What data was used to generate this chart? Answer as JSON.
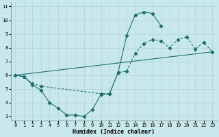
{
  "background_color": "#c8e8ec",
  "line_color": "#1e6e6e",
  "grid_color": "#b0d4d8",
  "xlim": [
    -0.5,
    23.5
  ],
  "ylim": [
    2.7,
    11.3
  ],
  "xticks": [
    0,
    1,
    2,
    3,
    4,
    5,
    6,
    7,
    8,
    9,
    10,
    11,
    12,
    13,
    14,
    15,
    16,
    17,
    18,
    19,
    20,
    21,
    22,
    23
  ],
  "yticks": [
    3,
    4,
    5,
    6,
    7,
    8,
    9,
    10,
    11
  ],
  "xlabel": "Humidex (Indice chaleur)",
  "curve1_x": [
    0,
    1,
    2,
    3,
    4,
    5,
    6,
    7,
    8,
    9,
    10,
    11,
    12,
    13,
    14,
    15,
    16,
    17
  ],
  "curve1_y": [
    6.0,
    5.9,
    5.3,
    4.9,
    4.0,
    3.6,
    3.1,
    3.1,
    3.0,
    3.5,
    4.6,
    4.65,
    6.2,
    8.9,
    10.4,
    10.6,
    10.5,
    9.6
  ],
  "curve2_x": [
    0,
    1,
    2,
    3,
    10,
    11,
    12,
    13,
    14,
    15,
    16,
    17,
    18,
    19,
    20,
    21,
    22,
    23
  ],
  "curve2_y": [
    6.0,
    5.9,
    5.4,
    5.2,
    4.65,
    4.65,
    6.2,
    6.3,
    7.6,
    8.3,
    8.6,
    8.5,
    8.0,
    8.6,
    8.8,
    7.9,
    8.4,
    7.7
  ],
  "curve3_x": [
    0,
    23
  ],
  "curve3_y": [
    6.0,
    7.7
  ]
}
